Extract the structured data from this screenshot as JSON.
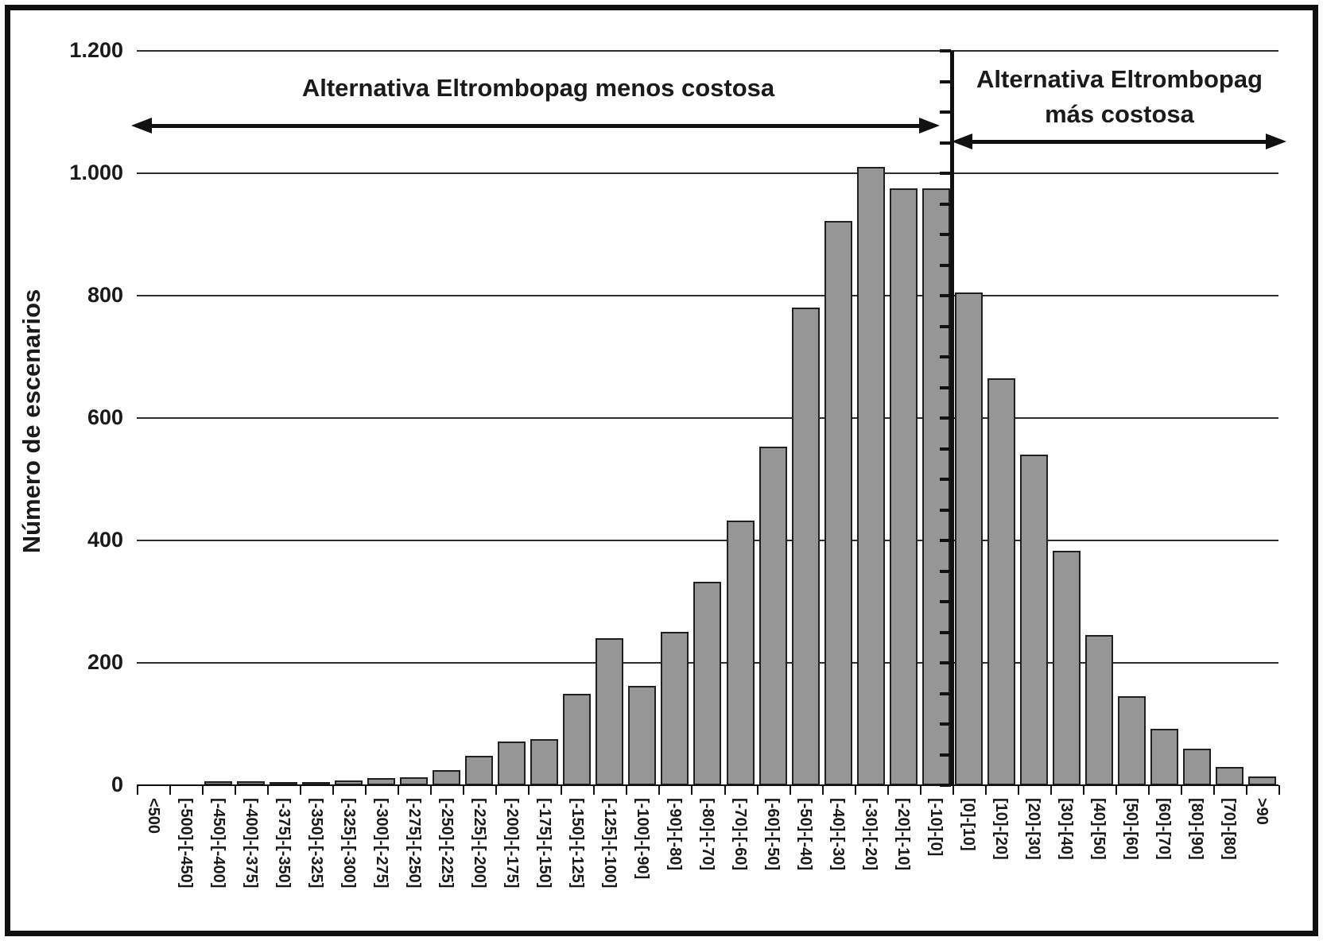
{
  "figure": {
    "y_axis_title": "Número de escenarios",
    "left_region_label": "Alternativa Eltrombopag menos costosa",
    "right_region_label": {
      "line1": "Alternativa Eltrombopag",
      "line2": "más costosa"
    }
  },
  "chart_data": {
    "type": "bar",
    "title": "",
    "xlabel": "",
    "ylabel": "Número de escenarios",
    "ylim": [
      0,
      1200
    ],
    "ytick_interval": 200,
    "yticks": [
      {
        "value": 0,
        "label": "0"
      },
      {
        "value": 200,
        "label": "200"
      },
      {
        "value": 400,
        "label": "400"
      },
      {
        "value": 600,
        "label": "600"
      },
      {
        "value": 800,
        "label": "800"
      },
      {
        "value": 1000,
        "label": "1.000"
      },
      {
        "value": 1200,
        "label": "1.200"
      }
    ],
    "grid": true,
    "legend_position": "none",
    "bar_fill": "#969696",
    "bar_stroke": "#202020",
    "categories": [
      "<500",
      "[-500]-[-450]",
      "[-450]-[-400]",
      "[-400]-[-375]",
      "[-375]-[-350]",
      "[-350]-[-325]",
      "[-325]-[-300]",
      "[-300]-[-275]",
      "[-275]-[-250]",
      "[-250]-[-225]",
      "[-225]-[-200]",
      "[-200]-[-175]",
      "[-175]-[-150]",
      "[-150]-[-125]",
      "[-125]-[-100]",
      "[-100]-[-90]",
      "[-90]-[-80]",
      "[-80]-[-70]",
      "[-70]-[-60]",
      "[-60]-[-50]",
      "[-50]-[-40]",
      "[-40]-[-30]",
      "[-30]-[-20]",
      "[-20]-[-10]",
      "[-10]-[0]",
      "[0]-[10]",
      "[10]-[20]",
      "[20]-[30]",
      "[30]-[40]",
      "[40]-[50]",
      "[50]-[60]",
      "[60]-[70]",
      "[80]-[90]",
      "[70]-[80]",
      ">90"
    ],
    "values": [
      0,
      0,
      6,
      6,
      5,
      5,
      8,
      12,
      13,
      25,
      48,
      72,
      75,
      149,
      240,
      162,
      250,
      332,
      432,
      553,
      780,
      922,
      1010,
      975,
      975,
      805,
      665,
      540,
      383,
      245,
      146,
      92,
      60,
      30,
      14
    ],
    "zero_boundary_after_index": 24,
    "annotations": [
      {
        "text": "Alternativa Eltrombopag menos costosa",
        "region": "values below 0",
        "arrow": "double-headed",
        "side": "left"
      },
      {
        "text": "Alternativa Eltrombopag más costosa",
        "region": "values above 0",
        "arrow": "double-headed",
        "side": "right"
      }
    ]
  }
}
